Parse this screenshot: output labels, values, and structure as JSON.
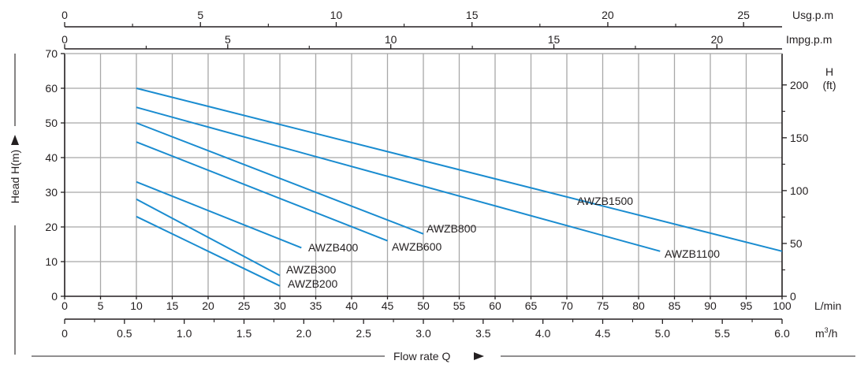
{
  "chart_data": {
    "type": "line",
    "title": "",
    "xlabel": "Flow rate Q",
    "ylabel": "Head H(m)",
    "x_unit": "L/min",
    "xlim": [
      0,
      100
    ],
    "ylim": [
      0,
      70
    ],
    "grid": true,
    "x_ticks": [
      0,
      5,
      10,
      15,
      20,
      25,
      30,
      35,
      40,
      45,
      50,
      55,
      60,
      65,
      70,
      75,
      80,
      85,
      90,
      95,
      100
    ],
    "y_ticks": [
      0,
      10,
      20,
      30,
      40,
      50,
      60,
      70
    ],
    "secondary_axes": {
      "usgpm": {
        "unit": "Usg.p.m",
        "ticks": [
          0,
          5,
          10,
          15,
          20,
          25
        ]
      },
      "impgpm": {
        "unit": "Impg.p.m",
        "ticks": [
          0,
          5,
          10,
          15,
          20
        ]
      },
      "m3h": {
        "unit_base": "m",
        "unit_sup": "3",
        "unit_tail": "/h",
        "ticks": [
          "0",
          "0.5",
          "1.0",
          "1.5",
          "2.0",
          "2.5",
          "3.0",
          "3.5",
          "4.0",
          "4.5",
          "5.0",
          "5.5",
          "6.0"
        ]
      },
      "feet": {
        "unit_top": "H",
        "unit_bottom": "(ft)",
        "ticks": [
          0,
          50,
          100,
          150,
          200
        ]
      }
    },
    "series": [
      {
        "name": "AWZB1500",
        "points": [
          [
            10,
            60
          ],
          [
            100,
            13
          ]
        ]
      },
      {
        "name": "AWZB1100",
        "points": [
          [
            10,
            54.5
          ],
          [
            83,
            13
          ]
        ]
      },
      {
        "name": "AWZB800",
        "points": [
          [
            10,
            50
          ],
          [
            50,
            18
          ]
        ]
      },
      {
        "name": "AWZB600",
        "points": [
          [
            10,
            44.5
          ],
          [
            45,
            16
          ]
        ]
      },
      {
        "name": "AWZB400",
        "points": [
          [
            10,
            33
          ],
          [
            33,
            14
          ]
        ]
      },
      {
        "name": "AWZB300",
        "points": [
          [
            10,
            28
          ],
          [
            30,
            6
          ]
        ]
      },
      {
        "name": "AWZB200",
        "points": [
          [
            10,
            23
          ],
          [
            30,
            3
          ]
        ]
      }
    ],
    "line_color": "#1a8cd0"
  }
}
